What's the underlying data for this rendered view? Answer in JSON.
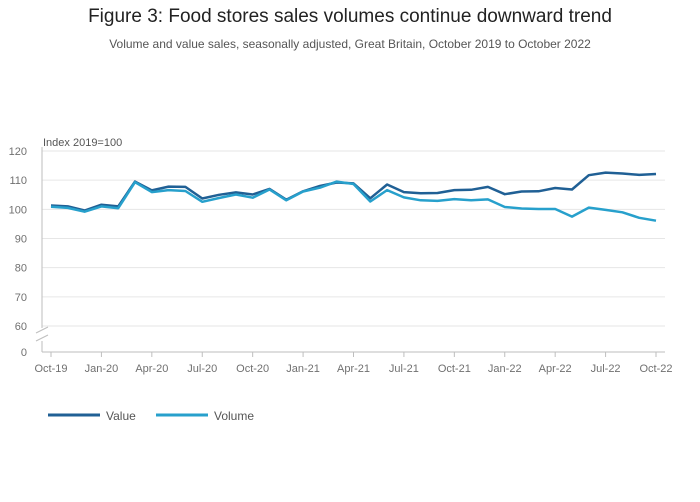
{
  "title": "Figure 3: Food stores sales volumes continue downward trend",
  "subtitle": "Volume and value sales, seasonally adjusted, Great Britain, October 2019 to October 2022",
  "chart_data": {
    "type": "line",
    "y_unit_label": "Index 2019=100",
    "x": [
      "Oct-19",
      "Nov-19",
      "Dec-19",
      "Jan-20",
      "Feb-20",
      "Mar-20",
      "Apr-20",
      "May-20",
      "Jun-20",
      "Jul-20",
      "Aug-20",
      "Sep-20",
      "Oct-20",
      "Nov-20",
      "Dec-20",
      "Jan-21",
      "Feb-21",
      "Mar-21",
      "Apr-21",
      "May-21",
      "Jun-21",
      "Jul-21",
      "Aug-21",
      "Sep-21",
      "Oct-21",
      "Nov-21",
      "Dec-21",
      "Jan-22",
      "Feb-22",
      "Mar-22",
      "Apr-22",
      "May-22",
      "Jun-22",
      "Jul-22",
      "Aug-22",
      "Sep-22",
      "Oct-22"
    ],
    "x_tick_labels": [
      "Oct-19",
      "Jan-20",
      "Apr-20",
      "Jul-20",
      "Oct-20",
      "Jan-21",
      "Apr-21",
      "Jul-21",
      "Oct-21",
      "Jan-22",
      "Apr-22",
      "Jul-22",
      "Oct-22"
    ],
    "y_ticks": [
      0,
      60,
      70,
      80,
      90,
      100,
      110,
      120
    ],
    "ylim_broken": [
      60,
      120
    ],
    "axis_break": true,
    "grid": true,
    "legend_position": "bottom-left",
    "series": [
      {
        "name": "Value",
        "color": "#206095",
        "values": [
          101.3,
          101.0,
          99.6,
          101.6,
          101.0,
          109.5,
          106.5,
          107.8,
          107.7,
          103.7,
          105.0,
          105.8,
          105.1,
          107.0,
          103.3,
          106.2,
          108.0,
          109.2,
          108.9,
          103.8,
          108.5,
          105.9,
          105.5,
          105.6,
          106.6,
          106.7,
          107.7,
          105.2,
          106.1,
          106.2,
          107.3,
          106.8,
          111.7,
          112.6,
          112.3,
          111.8,
          112.1
        ]
      },
      {
        "name": "Volume",
        "color": "#27A0CC",
        "values": [
          100.9,
          100.5,
          99.2,
          101.0,
          100.4,
          109.3,
          105.9,
          106.6,
          106.3,
          102.6,
          103.9,
          105.1,
          104.0,
          106.8,
          103.1,
          106.1,
          107.4,
          109.5,
          108.7,
          102.7,
          106.6,
          104.1,
          103.1,
          102.9,
          103.5,
          103.1,
          103.4,
          100.8,
          100.3,
          100.1,
          100.1,
          97.5,
          100.6,
          99.8,
          99.0,
          97.1,
          96.1
        ]
      }
    ]
  }
}
